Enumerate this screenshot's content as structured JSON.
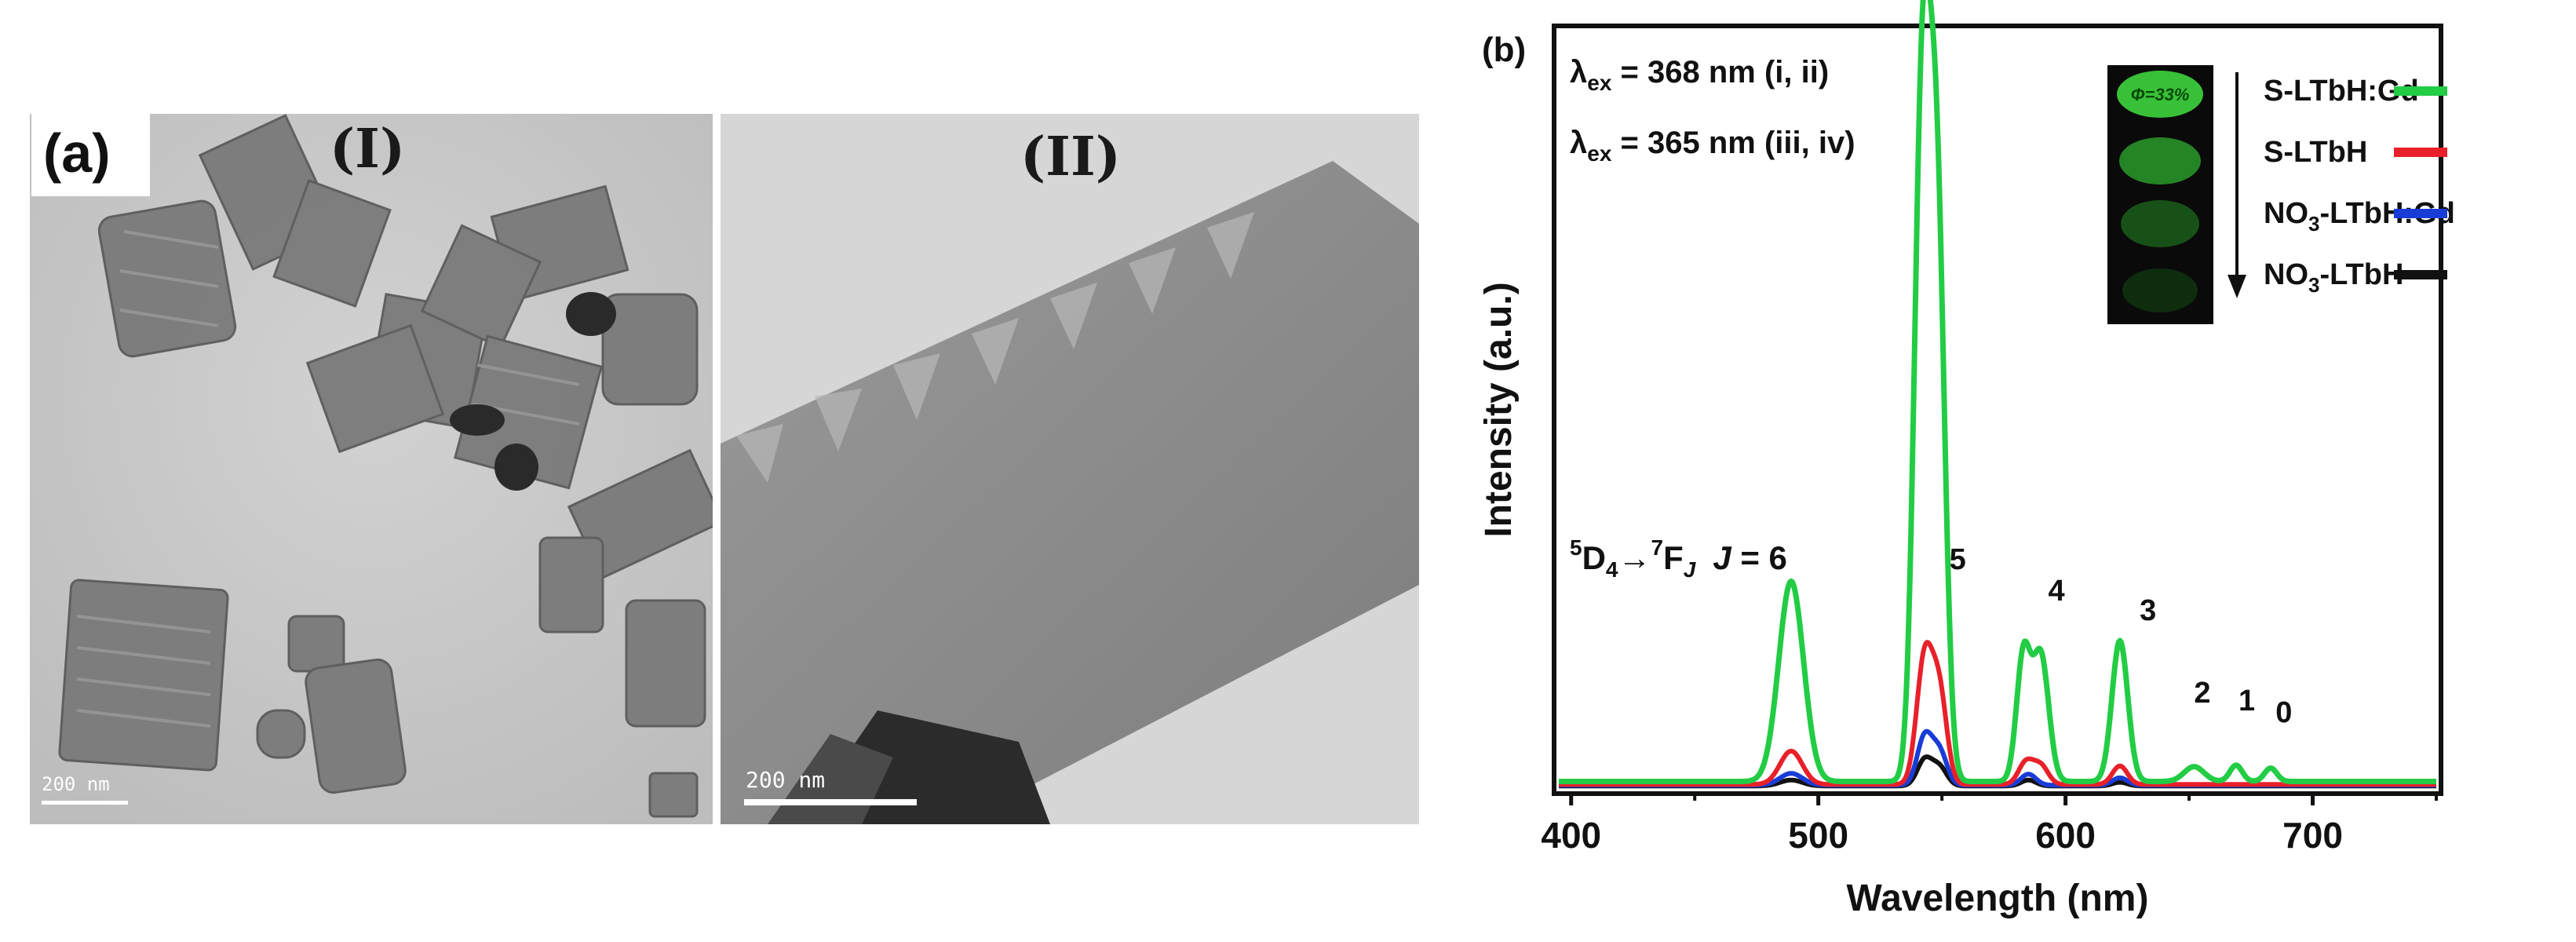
{
  "panel_a": {
    "label": "(a)",
    "images": [
      {
        "title": "(I)",
        "scalebar": "200 nm"
      },
      {
        "title": "(II)",
        "scalebar": "200 nm"
      }
    ]
  },
  "chart_data": {
    "type": "line",
    "panel_label": "(b)",
    "xlabel": "Wavelength (nm)",
    "ylabel": "Intensity (a.u.)",
    "xlim": [
      395,
      750
    ],
    "ylim": [
      0,
      100
    ],
    "xticks": [
      400,
      500,
      600,
      700
    ],
    "yticks_labels": "none",
    "grid": false,
    "legend_position": "top-right",
    "excitation_notes": [
      {
        "prefix": "λ",
        "sub": "ex",
        "rest": " = 368 nm (i, ii)"
      },
      {
        "prefix": "λ",
        "sub": "ex",
        "rest": " = 365 nm (iii, iv)"
      }
    ],
    "transition_label": {
      "text": "5D4→7FJ J = 6",
      "sup1": "5",
      "base1": "D",
      "sub1": "4",
      "arrow": "→",
      "sup2": "7",
      "base2": "F",
      "sub2": "J",
      "tail_italic": "J",
      "tail": " = 6"
    },
    "peak_labels": [
      {
        "text": "5",
        "x": 553
      },
      {
        "text": "4",
        "x": 593
      },
      {
        "text": "3",
        "x": 630
      },
      {
        "text": "2",
        "x": 652
      },
      {
        "text": "1",
        "x": 670
      },
      {
        "text": "0",
        "x": 685
      }
    ],
    "inset": {
      "description_text": "Φ=33%"
    },
    "series": [
      {
        "name": "S-LTbH:Gd",
        "color": "#22cc44",
        "peaks": [
          [
            489,
            27,
            5
          ],
          [
            542,
            90,
            3.2
          ],
          [
            548,
            75,
            3.2
          ],
          [
            583,
            17,
            2.8
          ],
          [
            590,
            17,
            3.2
          ],
          [
            622,
            19,
            3.2
          ],
          [
            652,
            2,
            4
          ],
          [
            669,
            2.2,
            2.5
          ],
          [
            683,
            1.8,
            2.5
          ]
        ],
        "baseline": 1
      },
      {
        "name": "S-LTbH",
        "color": "#e8202a",
        "peaks": [
          [
            489,
            4.5,
            4.5
          ],
          [
            543,
            17,
            3.2
          ],
          [
            549,
            12,
            3
          ],
          [
            584,
            3,
            3
          ],
          [
            590,
            2.5,
            3
          ],
          [
            622,
            2.5,
            3
          ]
        ],
        "baseline": 0.6
      },
      {
        "name": "NO3-LTbH:Gd",
        "color": "#1a3cd6",
        "peaks": [
          [
            489,
            1.6,
            4.5
          ],
          [
            543,
            6.5,
            3
          ],
          [
            549,
            4.5,
            3
          ],
          [
            585,
            1.5,
            3
          ],
          [
            622,
            1,
            3
          ]
        ],
        "baseline": 0.5
      },
      {
        "name": "NO3-LTbH",
        "color": "#111111",
        "peaks": [
          [
            489,
            0.8,
            4.5
          ],
          [
            543,
            3.5,
            3
          ],
          [
            549,
            2.5,
            3
          ],
          [
            585,
            0.8,
            3
          ],
          [
            622,
            0.5,
            3
          ]
        ],
        "baseline": 0.4
      }
    ],
    "legend_labels": [
      {
        "pre": "S",
        "sub": "",
        "post": "-LTbH:Gd"
      },
      {
        "pre": "S",
        "sub": "",
        "post": "-LTbH"
      },
      {
        "pre": "NO",
        "sub": "3",
        "post": "-LTbH:Gd"
      },
      {
        "pre": "NO",
        "sub": "3",
        "post": "-LTbH"
      }
    ]
  }
}
